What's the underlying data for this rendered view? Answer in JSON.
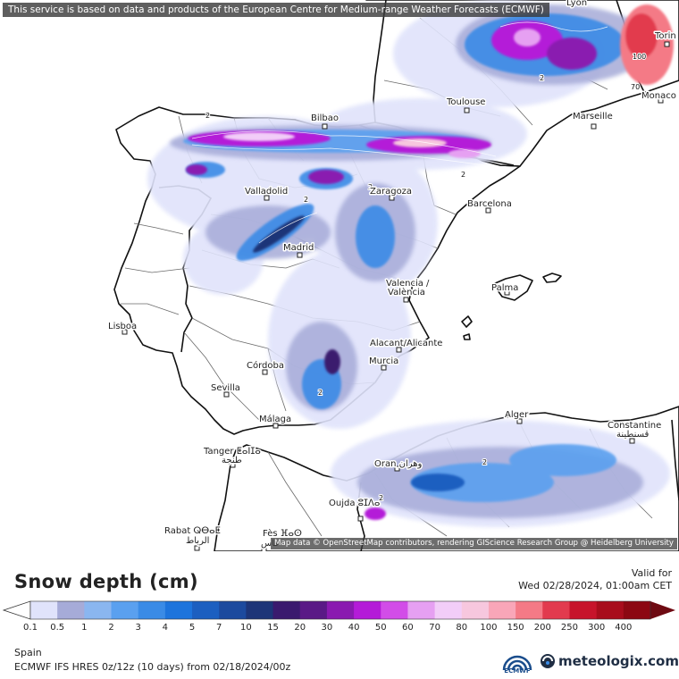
{
  "header": {
    "disclaimer": "This service is based on data and products of the European Centre for Medium-range Weather Forecasts (ECMWF)"
  },
  "map": {
    "attribution": "Map data © OpenStreetMap contributors, rendering GIScience Research Group @ Heidelberg University",
    "cities": [
      {
        "id": "bilbao",
        "name": "Bilbao"
      },
      {
        "id": "toulouse",
        "name": "Toulouse"
      },
      {
        "id": "marseille",
        "name": "Marseille"
      },
      {
        "id": "monaco",
        "name": "Monaco"
      },
      {
        "id": "torino",
        "name": "Torin"
      },
      {
        "id": "lyon",
        "name": "Lyon"
      },
      {
        "id": "valladolid",
        "name": "Valladolid"
      },
      {
        "id": "zaragoza",
        "name": "Zaragoza"
      },
      {
        "id": "barcelona",
        "name": "Barcelona"
      },
      {
        "id": "madrid",
        "name": "Madrid"
      },
      {
        "id": "valencia1",
        "name": "Valencia /"
      },
      {
        "id": "valencia2",
        "name": "València"
      },
      {
        "id": "palma",
        "name": "Palma"
      },
      {
        "id": "lisboa",
        "name": "Lisboa"
      },
      {
        "id": "alicante",
        "name": "Alacant/Alicante"
      },
      {
        "id": "cordoba",
        "name": "Córdoba"
      },
      {
        "id": "murcia",
        "name": "Murcia"
      },
      {
        "id": "sevilla",
        "name": "Sevilla"
      },
      {
        "id": "malaga",
        "name": "Málaga"
      },
      {
        "id": "alger",
        "name": "Alger"
      },
      {
        "id": "constantine1",
        "name": "Constantine"
      },
      {
        "id": "constantine2",
        "name": "قسنطينة"
      },
      {
        "id": "tanger1",
        "name": "Tanger ⵟⴰⵏⵊⴰ"
      },
      {
        "id": "tanger2",
        "name": "طنجة"
      },
      {
        "id": "oran",
        "name": "Oran وهران"
      },
      {
        "id": "oujda",
        "name": "Oujda ⵓⵊⴷⴰ"
      },
      {
        "id": "rabat1",
        "name": "Rabat ⵕⴱⴰⵟ"
      },
      {
        "id": "rabat2",
        "name": "الرباط"
      },
      {
        "id": "fes1",
        "name": "Fès ⴼⴰⵙ"
      },
      {
        "id": "fes2",
        "name": "فاس"
      }
    ],
    "contour_labels": [
      "2",
      "2",
      "2",
      "2",
      "2",
      "2",
      "2",
      "2",
      "70",
      "100"
    ]
  },
  "legend": {
    "title": "Snow depth (cm)",
    "valid_label": "Valid for",
    "valid_date": "Wed 02/28/2024, 01:00am CET",
    "ticks": [
      "0.1",
      "0.5",
      "1",
      "2",
      "3",
      "4",
      "5",
      "7",
      "10",
      "15",
      "20",
      "30",
      "40",
      "50",
      "60",
      "70",
      "80",
      "100",
      "150",
      "200",
      "250",
      "300",
      "400"
    ],
    "colors": [
      "#e0e3fb",
      "#a6abd8",
      "#8ab6f0",
      "#5aa0ef",
      "#3a8be6",
      "#1d74dc",
      "#1c5fc0",
      "#1c4a9e",
      "#1d3578",
      "#3a1a6e",
      "#5a1a86",
      "#8a1ab0",
      "#b41bd8",
      "#d24de8",
      "#e6a0f2",
      "#f2cdf8",
      "#f7c7de",
      "#f9a6b8",
      "#f47a86",
      "#e23a4e",
      "#c7142b",
      "#a80d1c",
      "#8c0812",
      "#6e0a12"
    ]
  },
  "footer": {
    "region": "Spain",
    "model": "ECMWF IFS HRES 0z/12z (10 days) from 02/18/2024/00z",
    "ecmwf_logo_text": "ECMWF",
    "brand": "meteologix.com"
  }
}
